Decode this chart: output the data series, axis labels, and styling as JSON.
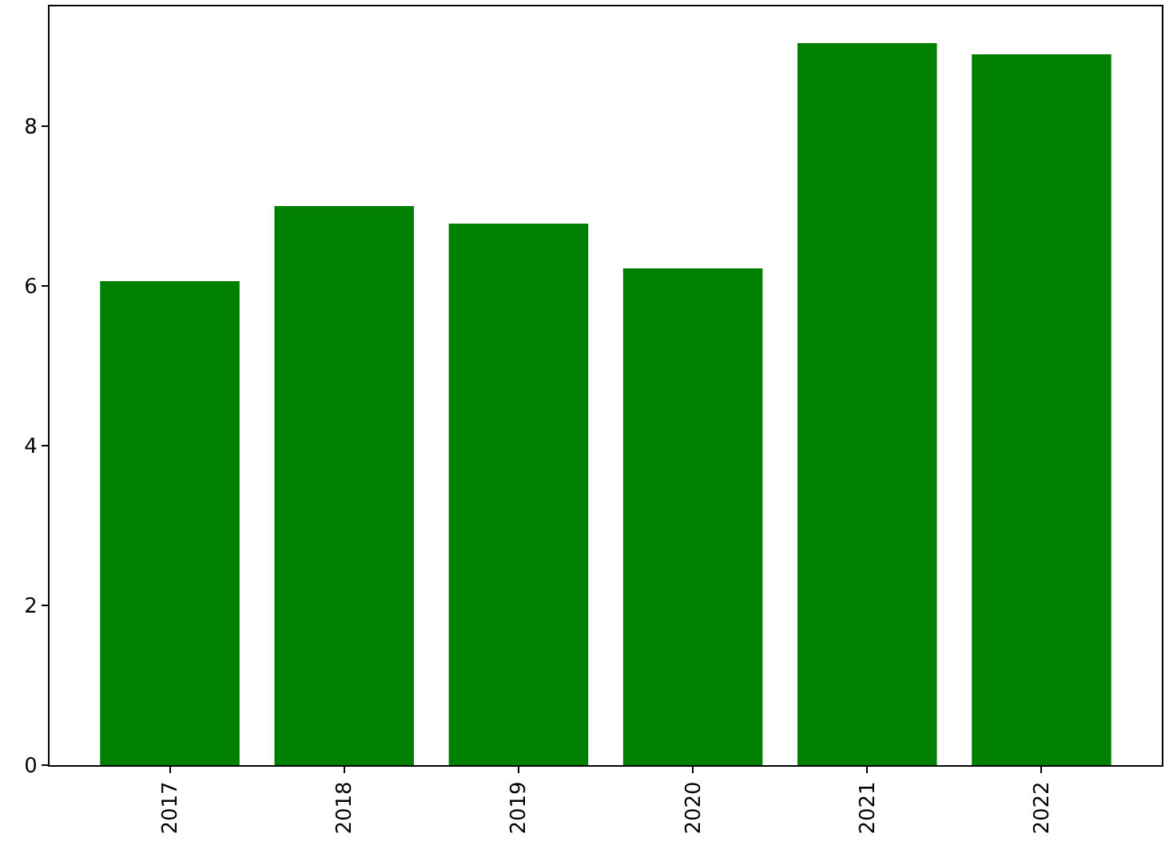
{
  "chart_data": {
    "type": "bar",
    "categories": [
      "2017",
      "2018",
      "2019",
      "2020",
      "2021",
      "2022"
    ],
    "values": [
      6.06,
      7.0,
      6.78,
      6.22,
      9.04,
      8.9
    ],
    "color": "#008000",
    "ylim": [
      0,
      9.5
    ],
    "yticks": [
      0,
      2,
      4,
      6,
      8
    ]
  }
}
